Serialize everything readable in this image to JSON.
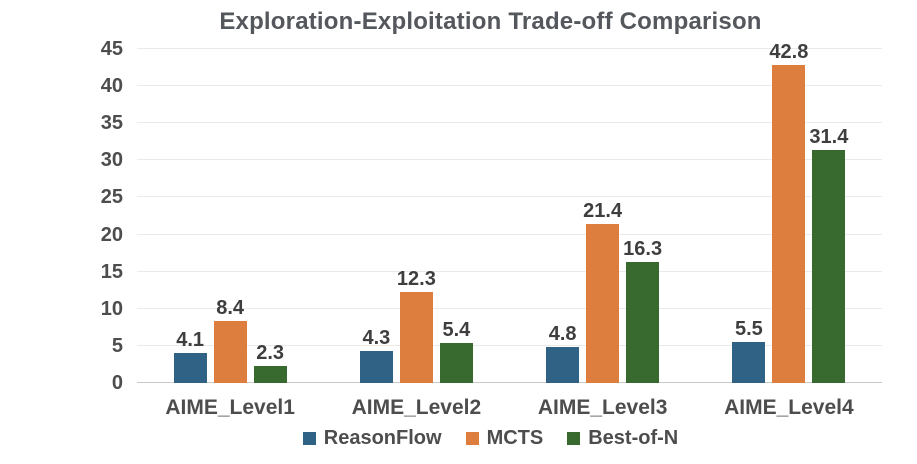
{
  "chart_data": {
    "type": "bar",
    "title": "Exploration-Exploitation Trade-off Comparison",
    "categories": [
      "AIME_Level1",
      "AIME_Level2",
      "AIME_Level3",
      "AIME_Level4"
    ],
    "series": [
      {
        "name": "ReasonFlow",
        "color": "#2F6285",
        "values": [
          4.1,
          4.3,
          4.8,
          5.5
        ]
      },
      {
        "name": "MCTS",
        "color": "#DD7E3E",
        "values": [
          8.4,
          12.3,
          21.4,
          42.8
        ]
      },
      {
        "name": "Best-of-N",
        "color": "#38692E",
        "values": [
          2.3,
          5.4,
          16.3,
          31.4
        ]
      }
    ],
    "value_labels": [
      "4.1",
      "8.4",
      "2.3",
      "4.3",
      "12.3",
      "5.4",
      "4.8",
      "21.4",
      "16.3",
      "5.5",
      "42.8",
      "31.4"
    ],
    "xlabel": "",
    "ylabel": "",
    "ylim": [
      0,
      45
    ],
    "yticks": [
      0,
      5,
      10,
      15,
      20,
      25,
      30,
      35,
      40,
      45
    ],
    "grid": "horizontal",
    "legend_position": "bottom"
  },
  "colors": {
    "background": "#FFFFFF",
    "title_text": "#54575C",
    "axis_text": "#4D4D4D",
    "value_label_text": "#3E3E3E",
    "gridline": "#EAEAEA",
    "baseline": "#C9C9C9"
  }
}
